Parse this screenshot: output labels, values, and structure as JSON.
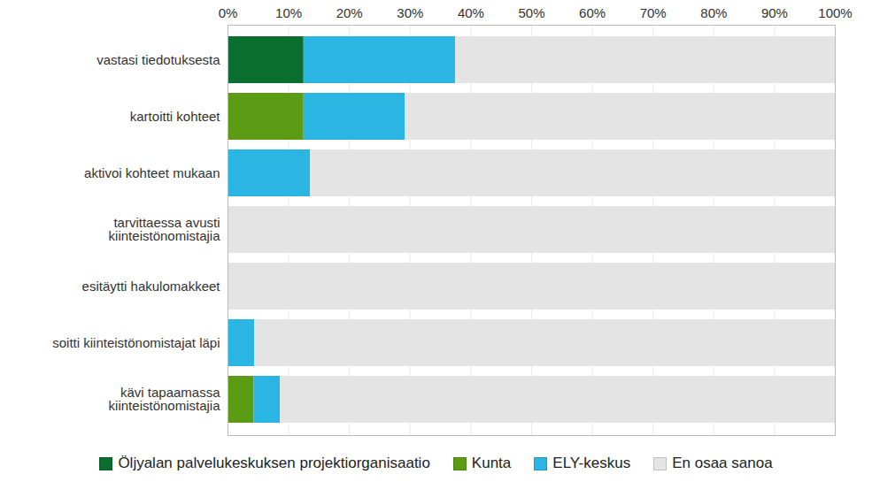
{
  "chart_data": {
    "type": "bar",
    "orientation": "horizontal",
    "stacked": true,
    "grid": true,
    "legend": "bottom",
    "categories": [
      "vastasi tiedotuksesta",
      "kartoitti kohteet",
      "aktivoi kohteet mukaan",
      "tarvittaessa avusti\nkiinteistönomistajia",
      "esitäytti hakulomakkeet",
      "soitti kiinteistönomistajat läpi",
      "kävi tapaamassa\nkiinteistönomistajia"
    ],
    "series": [
      {
        "name": "Öljyalan palvelukeskuksen projektiorganisaatio",
        "color": "#0a6e2e",
        "values": [
          12.5,
          0,
          0,
          0,
          0,
          0,
          0
        ]
      },
      {
        "name": "Kunta",
        "color": "#5b9c14",
        "values": [
          0,
          12.5,
          0,
          0,
          0,
          0,
          4.3
        ]
      },
      {
        "name": "ELY-keskus",
        "color": "#2bb5e2",
        "values": [
          25,
          16.7,
          13.6,
          0,
          0,
          4.4,
          4.3
        ]
      },
      {
        "name": "En osaa sanoa",
        "color": "#e4e4e4",
        "values": [
          62.5,
          70.8,
          86.4,
          100,
          100,
          95.6,
          91.4
        ]
      }
    ],
    "xlim": [
      0,
      100
    ],
    "xticks": [
      {
        "value": 0,
        "label": "0%"
      },
      {
        "value": 10,
        "label": "10%"
      },
      {
        "value": 20,
        "label": "20%"
      },
      {
        "value": 30,
        "label": "30%"
      },
      {
        "value": 40,
        "label": "40%"
      },
      {
        "value": 50,
        "label": "50%"
      },
      {
        "value": 60,
        "label": "60%"
      },
      {
        "value": 70,
        "label": "70%"
      },
      {
        "value": 80,
        "label": "80%"
      },
      {
        "value": 90,
        "label": "90%"
      },
      {
        "value": 100,
        "label": "100%"
      }
    ]
  }
}
